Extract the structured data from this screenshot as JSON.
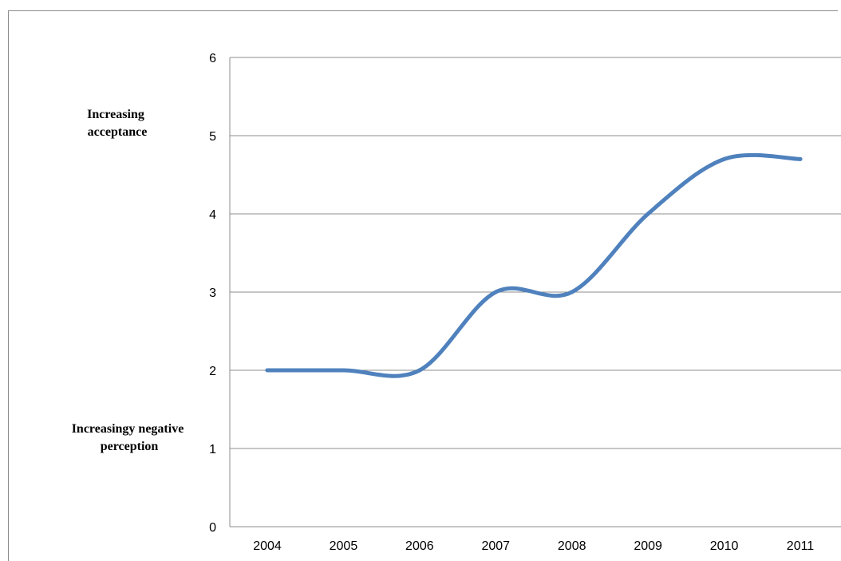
{
  "chart_data": {
    "type": "line",
    "title": "",
    "xlabel": "",
    "ylabel": "",
    "categories": [
      "2004",
      "2005",
      "2006",
      "2007",
      "2008",
      "2009",
      "2010",
      "2011"
    ],
    "series": [
      {
        "values": [
          2,
          2,
          2,
          3,
          3,
          4,
          4.7,
          4.7
        ],
        "color": "#4f81bd"
      }
    ],
    "ylim": [
      0,
      6
    ],
    "yticks": [
      0,
      1,
      2,
      3,
      4,
      5,
      6
    ],
    "grid": true,
    "smooth": true,
    "annotations": [
      {
        "lines": [
          "Increasing",
          "acceptance"
        ]
      },
      {
        "lines": [
          "Increasingy negative",
          "perception"
        ]
      }
    ]
  }
}
